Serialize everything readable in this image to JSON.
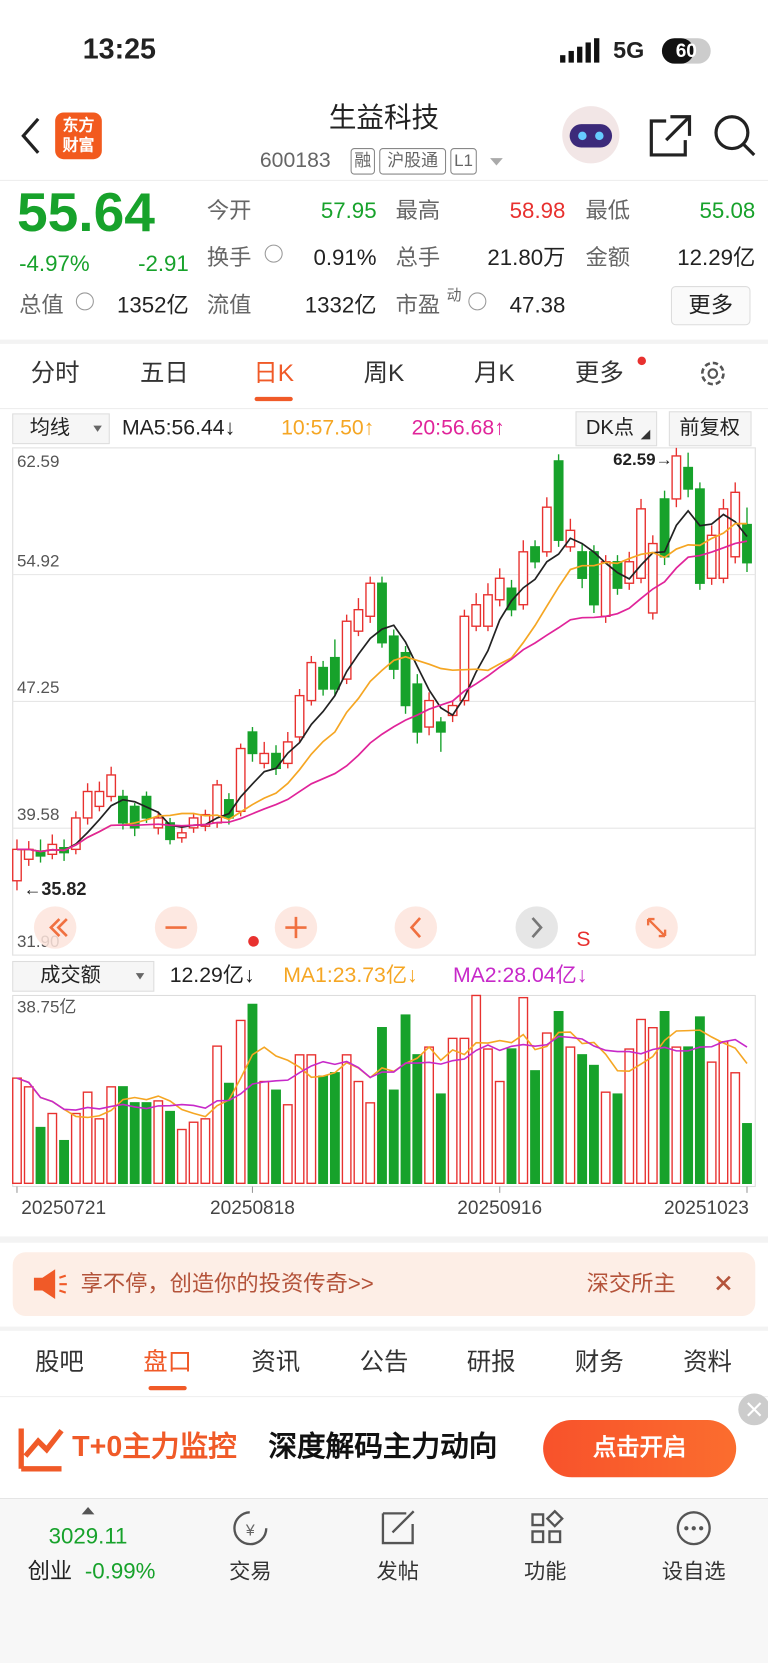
{
  "status_bar": {
    "time": "13:25",
    "network": "5G",
    "battery": "60"
  },
  "header": {
    "logo": [
      "东方",
      "财富"
    ],
    "title": "生益科技",
    "code": "600183",
    "badges": [
      "融",
      "沪股通",
      "L1"
    ]
  },
  "quote": {
    "price": "55.64",
    "change_percent": "-4.97%",
    "change": "-2.91",
    "open": {
      "label": "今开",
      "value": "57.95"
    },
    "high": {
      "label": "最高",
      "value": "58.98"
    },
    "low": {
      "label": "最低",
      "value": "55.08"
    },
    "turnover_rate": {
      "label": "换手",
      "value": "0.91%"
    },
    "volume": {
      "label": "总手",
      "value": "21.80万"
    },
    "amount": {
      "label": "金额",
      "value": "12.29亿"
    },
    "market_cap": {
      "label": "总值",
      "value": "1352亿"
    },
    "float_cap": {
      "label": "流值",
      "value": "1332亿"
    },
    "pe": {
      "label": "市盈",
      "superscript": "动",
      "value": "47.38"
    },
    "more_button": "更多"
  },
  "period_tabs": {
    "items": [
      "分时",
      "五日",
      "日K",
      "周K",
      "月K",
      "更多"
    ],
    "active": 2
  },
  "chart_data": [
    {
      "type": "candlestick",
      "indicator": "均线",
      "ma_labels": [
        {
          "text": "MA5:56.44↓",
          "color": "#222222"
        },
        {
          "text": "10:57.50↑",
          "color": "#f5a623"
        },
        {
          "text": "20:56.68↑",
          "color": "#e0249a"
        }
      ],
      "ma_periods": [
        5,
        10,
        20
      ],
      "buttons": [
        "DK点",
        "前复权"
      ],
      "ylim": [
        31.9,
        62.59
      ],
      "yticks": [
        62.59,
        54.92,
        47.25,
        39.58,
        {
          "value": 31.9,
          "label": "31.90"
        }
      ],
      "annotations": [
        "62.59→",
        "←35.82"
      ],
      "signal_label": "S",
      "up_color": "#e8312f",
      "down_color": "#17a22b",
      "open": [
        36.4,
        37.7,
        38.2,
        38.0,
        38.4,
        38.3,
        40.2,
        40.9,
        41.5,
        41.5,
        40.9,
        41.5,
        39.6,
        39.9,
        39.0,
        39.6,
        39.7,
        39.9,
        41.3,
        40.6,
        45.4,
        43.5,
        44.1,
        43.5,
        45.1,
        47.3,
        49.3,
        49.9,
        48.6,
        51.5,
        52.4,
        54.4,
        51.2,
        50.2,
        48.3,
        45.7,
        46.0,
        46.4,
        47.3,
        51.8,
        51.8,
        53.4,
        54.1,
        53.1,
        56.6,
        56.3,
        61.8,
        56.6,
        56.3,
        56.3,
        52.4,
        55.7,
        54.4,
        54.7,
        52.6,
        59.5,
        59.5,
        61.4,
        60.1,
        54.7,
        54.7,
        56.0,
        57.95
      ],
      "high": [
        38.9,
        38.8,
        38.9,
        39.2,
        38.9,
        40.6,
        42.3,
        42.4,
        43.3,
        41.9,
        41.1,
        41.8,
        40.6,
        40.2,
        39.6,
        40.5,
        40.7,
        42.5,
        41.7,
        44.7,
        45.7,
        44.8,
        44.6,
        45.4,
        48.0,
        50.0,
        49.7,
        51.0,
        52.5,
        53.5,
        54.8,
        54.8,
        51.6,
        50.6,
        48.9,
        47.8,
        46.3,
        47.3,
        52.8,
        53.8,
        54.4,
        55.3,
        54.6,
        57.0,
        57.0,
        59.6,
        62.2,
        58.3,
        56.8,
        56.7,
        56.1,
        56.1,
        56.3,
        59.5,
        57.3,
        60.0,
        62.59,
        62.3,
        60.5,
        57.9,
        59.5,
        60.5,
        58.98
      ],
      "low": [
        35.82,
        37.3,
        37.5,
        37.7,
        37.6,
        38.0,
        39.8,
        40.6,
        41.2,
        39.5,
        39.1,
        39.9,
        39.2,
        38.6,
        38.7,
        39.3,
        39.4,
        39.6,
        39.8,
        40.3,
        43.6,
        43.2,
        42.8,
        43.2,
        44.8,
        47.0,
        47.6,
        47.6,
        48.3,
        51.2,
        52.0,
        50.5,
        48.6,
        46.5,
        44.7,
        45.2,
        44.2,
        46.0,
        47.0,
        51.5,
        51.5,
        53.0,
        52.4,
        52.8,
        55.3,
        56.0,
        56.6,
        56.3,
        54.1,
        52.6,
        52.0,
        53.7,
        54.0,
        54.4,
        52.2,
        55.5,
        59.0,
        59.6,
        54.0,
        54.3,
        54.4,
        55.6,
        55.08
      ],
      "close": [
        38.3,
        38.3,
        37.9,
        38.6,
        38.1,
        40.2,
        41.8,
        41.8,
        42.8,
        39.9,
        39.6,
        40.2,
        40.2,
        38.9,
        39.3,
        40.2,
        40.4,
        42.2,
        40.2,
        44.4,
        44.1,
        44.1,
        43.2,
        44.8,
        47.6,
        49.6,
        48.0,
        48.0,
        52.1,
        52.8,
        54.4,
        50.8,
        49.2,
        47.0,
        45.4,
        47.3,
        45.4,
        47.0,
        52.4,
        53.1,
        53.7,
        54.7,
        52.8,
        56.3,
        55.7,
        59.0,
        57.0,
        57.6,
        54.7,
        53.1,
        55.7,
        54.1,
        55.7,
        58.9,
        56.8,
        56.0,
        62.1,
        60.1,
        54.4,
        57.3,
        58.9,
        59.9,
        55.64
      ]
    },
    {
      "type": "bar",
      "indicator": "成交额",
      "labels": [
        {
          "text": "12.29亿↓",
          "color": "#222222"
        },
        {
          "text": "MA1:23.73亿↓",
          "color": "#f5a623"
        },
        {
          "text": "MA2:28.04亿↓",
          "color": "#c729c9"
        }
      ],
      "ma_periods": [
        5,
        10
      ],
      "ylim": [
        0,
        38.75
      ],
      "yticks": [
        {
          "value": 38.75,
          "label": "38.75亿"
        }
      ],
      "categories": [
        "20250721",
        null,
        null,
        null,
        null,
        null,
        null,
        null,
        null,
        null,
        null,
        null,
        null,
        null,
        null,
        null,
        null,
        null,
        null,
        null,
        "20250818",
        null,
        null,
        null,
        null,
        null,
        null,
        null,
        null,
        null,
        null,
        null,
        null,
        null,
        null,
        null,
        null,
        null,
        null,
        null,
        null,
        "20250916",
        null,
        null,
        null,
        null,
        null,
        null,
        null,
        null,
        null,
        null,
        null,
        null,
        null,
        null,
        null,
        null,
        null,
        null,
        null,
        null,
        "20251023"
      ],
      "values": [
        21.7,
        19.9,
        11.5,
        14.4,
        8.8,
        14.4,
        18.8,
        13.3,
        19.9,
        19.9,
        16.6,
        16.6,
        17.0,
        14.8,
        11.1,
        12.6,
        13.3,
        28.3,
        20.6,
        33.6,
        36.9,
        21.0,
        19.2,
        16.2,
        26.5,
        26.5,
        22.1,
        22.8,
        26.5,
        21.0,
        16.6,
        32.1,
        19.2,
        34.7,
        26.5,
        28.1,
        18.4,
        29.9,
        29.9,
        38.75,
        27.7,
        21.0,
        27.7,
        38.3,
        23.2,
        31.0,
        35.4,
        28.1,
        26.5,
        24.3,
        18.8,
        18.4,
        27.7,
        33.8,
        32.1,
        35.4,
        28.1,
        28.1,
        34.3,
        25.0,
        29.2,
        22.8,
        12.29
      ]
    }
  ],
  "banner": {
    "text": "享不停，创造你的投资传奇>>",
    "right_text": "深交所主"
  },
  "section_tabs": {
    "items": [
      "股吧",
      "盘口",
      "资讯",
      "公告",
      "研报",
      "财务",
      "资料"
    ],
    "active": 1
  },
  "promo": {
    "highlight": "T+0主力监控",
    "text": "深度解码主力动向",
    "button": "点击开启"
  },
  "bottom_nav": {
    "index_value": "3029.11",
    "index_name": "创业",
    "index_change": "-0.99%",
    "items": [
      "交易",
      "发帖",
      "功能",
      "设自选"
    ]
  }
}
